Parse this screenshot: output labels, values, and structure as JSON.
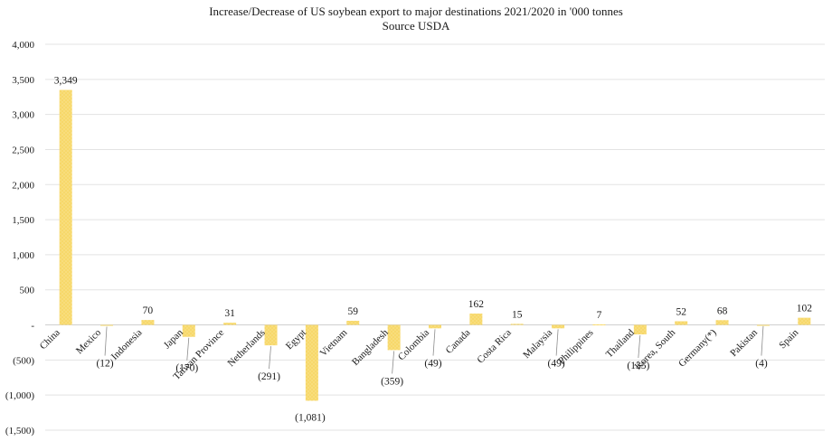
{
  "chart_data": {
    "type": "bar",
    "title": "Increase/Decrease of US soybean export to major destinations 2021/2020 in '000 tonnes",
    "subtitle": "Source USDA",
    "xlabel": "",
    "ylabel": "",
    "ylim": [
      -1500,
      4000
    ],
    "yticks": [
      4000,
      3500,
      3000,
      2500,
      2000,
      1500,
      1000,
      500,
      0,
      -500,
      -1000,
      -1500
    ],
    "ytick_labels": [
      "4,000",
      "3,500",
      "3,000",
      "2,500",
      "2,000",
      "1,500",
      "1,000",
      "500",
      "-",
      "(500)",
      "(1,000)",
      "(1,500)"
    ],
    "grid": true,
    "bar_color": "#f7d86a",
    "categories": [
      "China",
      "Mexico",
      "Indonesia",
      "Japan",
      "Taiwan Province",
      "Netherlands",
      "Egypt",
      "Vietnam",
      "Bangladesh",
      "Colombia",
      "Canada",
      "Costa Rica",
      "Malaysia",
      "Philippines",
      "Thailand",
      "Korea, South",
      "Germany(*)",
      "Pakistan",
      "Spain"
    ],
    "values": [
      3349,
      -12,
      70,
      -170,
      31,
      -291,
      -1081,
      59,
      -359,
      -49,
      162,
      15,
      -49,
      7,
      -135,
      52,
      68,
      -4,
      102
    ],
    "data_labels": [
      "3,349",
      "(12)",
      "70",
      "(170)",
      "31",
      "(291)",
      "(1,081)",
      "59",
      "(359)",
      "(49)",
      "162",
      "15",
      "(49)",
      "7",
      "(135)",
      "52",
      "68",
      "(4)",
      "102"
    ]
  }
}
